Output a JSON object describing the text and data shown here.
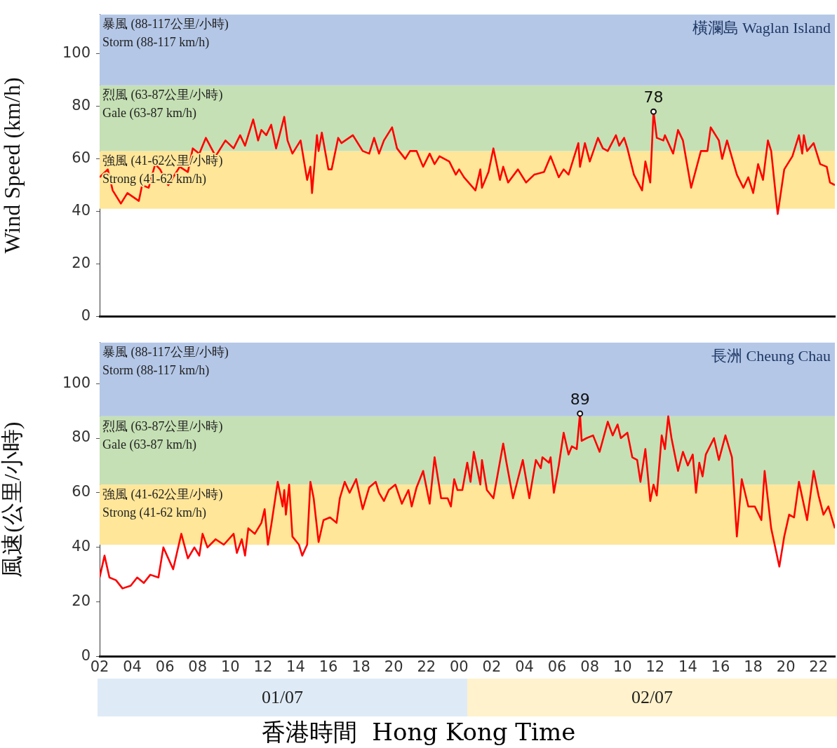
{
  "chart_data": [
    {
      "type": "line",
      "title": "橫瀾島 Waglan Island",
      "ylabel": "Wind Speed (km/h)",
      "xlim": [
        2,
        47
      ],
      "ylim": [
        0,
        115
      ],
      "yticks": [
        0,
        20,
        40,
        60,
        80,
        100
      ],
      "tick_labels": "y",
      "marker": "none",
      "legend": false,
      "bands": [
        {
          "axis": "y",
          "from": 41,
          "to": 63,
          "label": "強風 (41-62公里/小時)\nStrong (41-62 km/h)",
          "color": "#ffe699"
        },
        {
          "axis": "y",
          "from": 63,
          "to": 88,
          "label": "烈風 (63-87公里/小時)\nGale (63-87 km/h)",
          "color": "#c5e0b4"
        },
        {
          "axis": "y",
          "from": 88,
          "to": 115,
          "label": "暴風 (88-117公里/小時)\nStorm (88-117 km/h)",
          "color": "#b4c7e7"
        }
      ],
      "annotations": [
        {
          "text": "78",
          "x": 35.9,
          "y": 78
        }
      ],
      "series": [
        {
          "color": "#ff0000",
          "x": [
            2,
            2.5,
            2.8,
            3.3,
            3.7,
            4.4,
            4.6,
            5,
            5.4,
            5.7,
            6.2,
            6.9,
            7.4,
            7.7,
            8.1,
            8.5,
            9.1,
            9.7,
            10.2,
            10.6,
            10.9,
            11.4,
            11.7,
            11.9,
            12.2,
            12.5,
            12.8,
            13.3,
            13.5,
            13.8,
            14.3,
            14.7,
            14.9,
            15,
            15.3,
            15.4,
            15.6,
            16,
            16.2,
            16.6,
            16.8,
            17.5,
            18.1,
            18.5,
            18.8,
            19.1,
            19.4,
            19.9,
            20.2,
            20.7,
            21,
            21.4,
            21.8,
            22.2,
            22.5,
            22.8,
            23.4,
            23.8,
            24,
            24.3,
            25,
            25.3,
            25.4,
            25.8,
            26.1,
            26.5,
            26.7,
            27,
            27.6,
            28.1,
            28.6,
            29.2,
            29.6,
            30.1,
            30.4,
            30.7,
            31.3,
            31.4,
            31.7,
            32,
            32.5,
            32.8,
            33.1,
            33.6,
            33.8,
            34.1,
            34.3,
            34.7,
            35.2,
            35.4,
            35.7,
            35.9,
            36.1,
            36.5,
            36.6,
            37.1,
            37.4,
            37.7,
            38.2,
            38.8,
            39.2,
            39.4,
            39.9,
            40.1,
            40.4,
            41,
            41.4,
            41.7,
            42,
            42.3,
            42.6,
            42.9,
            43.1,
            43.5,
            43.9,
            44.4,
            44.8,
            45,
            45.1,
            45.3,
            45.7,
            46.1,
            46.5,
            46.7,
            47
          ],
          "values": [
            53,
            56,
            48,
            43,
            47,
            44,
            50,
            49,
            58,
            56,
            50,
            57,
            55,
            64,
            62,
            68,
            61,
            67,
            64,
            69,
            65,
            75,
            67,
            71,
            69,
            73,
            64,
            76,
            67,
            62,
            67,
            52,
            57,
            47,
            69,
            63,
            70,
            56,
            56,
            68,
            66,
            69,
            63,
            62,
            68,
            62,
            67,
            72,
            64,
            60,
            63,
            63,
            57,
            62,
            58,
            61,
            59,
            54,
            56,
            53,
            48,
            56,
            49,
            55,
            64,
            52,
            57,
            51,
            56,
            51,
            54,
            55,
            61,
            53,
            56,
            54,
            66,
            57,
            66,
            59,
            68,
            64,
            63,
            69,
            65,
            68,
            64,
            54,
            48,
            59,
            51,
            78,
            68,
            67,
            69,
            62,
            71,
            67,
            49,
            63,
            63,
            72,
            67,
            60,
            67,
            54,
            49,
            53,
            47,
            58,
            52,
            67,
            63,
            39,
            56,
            61,
            69,
            62,
            69,
            63,
            66,
            58,
            57,
            51,
            50
          ]
        }
      ]
    },
    {
      "type": "line",
      "title": "長洲 Cheung Chau",
      "ylabel": "風速(公里/小時)",
      "xlabel": "香港時間  Hong Kong Time",
      "xlim": [
        2,
        47
      ],
      "ylim": [
        0,
        115
      ],
      "yticks": [
        0,
        20,
        40,
        60,
        80,
        100
      ],
      "xticks": [
        {
          "value": 2,
          "label": "02"
        },
        {
          "value": 4,
          "label": "04"
        },
        {
          "value": 6,
          "label": "06"
        },
        {
          "value": 8,
          "label": "08"
        },
        {
          "value": 10,
          "label": "10"
        },
        {
          "value": 12,
          "label": "12"
        },
        {
          "value": 14,
          "label": "14"
        },
        {
          "value": 16,
          "label": "16"
        },
        {
          "value": 18,
          "label": "18"
        },
        {
          "value": 20,
          "label": "20"
        },
        {
          "value": 22,
          "label": "22"
        },
        {
          "value": 24,
          "label": "00"
        },
        {
          "value": 26,
          "label": "02"
        },
        {
          "value": 28,
          "label": "04"
        },
        {
          "value": 30,
          "label": "06"
        },
        {
          "value": 32,
          "label": "08"
        },
        {
          "value": 34,
          "label": "10"
        },
        {
          "value": 36,
          "label": "12"
        },
        {
          "value": 38,
          "label": "14"
        },
        {
          "value": 40,
          "label": "16"
        },
        {
          "value": 42,
          "label": "18"
        },
        {
          "value": 44,
          "label": "20"
        },
        {
          "value": 46,
          "label": "22"
        }
      ],
      "marker": "none",
      "legend": false,
      "bands": [
        {
          "axis": "y",
          "from": 41,
          "to": 63,
          "label": "強風 (41-62公里/小時)\nStrong (41-62 km/h)",
          "color": "#ffe699"
        },
        {
          "axis": "y",
          "from": 63,
          "to": 88,
          "label": "烈風 (63-87公里/小時)\nGale (63-87 km/h)",
          "color": "#c5e0b4"
        },
        {
          "axis": "y",
          "from": 88,
          "to": 115,
          "label": "暴風 (88-117公里/小時)\nStorm (88-117 km/h)",
          "color": "#b4c7e7"
        }
      ],
      "annotations": [
        {
          "text": "89",
          "x": 31.4,
          "y": 89
        },
        "01/07",
        "02/07"
      ],
      "series": [
        {
          "color": "#ff0000",
          "x": [
            2,
            2.3,
            2.6,
            3,
            3.4,
            3.9,
            4.3,
            4.7,
            5.1,
            5.6,
            5.9,
            6.5,
            7,
            7.4,
            7.8,
            8.1,
            8.3,
            8.6,
            9.1,
            9.6,
            10.2,
            10.4,
            10.7,
            10.9,
            11.1,
            11.5,
            11.9,
            12.1,
            12.3,
            12.5,
            12.9,
            13.2,
            13.3,
            13.4,
            13.6,
            13.8,
            14.2,
            14.4,
            14.7,
            14.9,
            15.1,
            15.4,
            15.7,
            16.1,
            16.5,
            16.7,
            17,
            17.3,
            17.7,
            18.1,
            18.5,
            18.9,
            19.1,
            19.4,
            19.7,
            20.1,
            20.5,
            20.9,
            21.1,
            21.4,
            21.8,
            22.2,
            22.5,
            22.9,
            23.3,
            23.5,
            23.7,
            23.9,
            24.2,
            24.5,
            24.7,
            24.9,
            25.3,
            25.4,
            25.7,
            26.1,
            26.7,
            26.9,
            27.3,
            27.9,
            28.3,
            28.7,
            29,
            29.1,
            29.5,
            29.6,
            29.8,
            30.1,
            30.4,
            30.7,
            30.9,
            31.2,
            31.4,
            31.5,
            31.8,
            32.2,
            32.6,
            33.1,
            33.4,
            33.7,
            33.9,
            34.3,
            34.6,
            34.9,
            35.1,
            35.4,
            35.7,
            35.9,
            36.1,
            36.4,
            36.6,
            36.8,
            37,
            37.4,
            37.7,
            38,
            38.3,
            38.5,
            38.7,
            38.9,
            39.1,
            39.6,
            39.9,
            40.3,
            40.7,
            41,
            41.3,
            41.7,
            42.1,
            42.5,
            42.7,
            43.1,
            43.6,
            43.9,
            44.2,
            44.5,
            44.8,
            45.3,
            45.7,
            46,
            46.3,
            46.6,
            47
          ],
          "values": [
            29,
            37,
            29,
            28,
            25,
            26,
            29,
            27,
            30,
            29,
            40,
            32,
            45,
            36,
            40,
            37,
            45,
            40,
            43,
            41,
            45,
            38,
            43,
            37,
            47,
            45,
            49,
            54,
            41,
            48,
            64,
            55,
            61,
            52,
            63,
            44,
            41,
            37,
            41,
            64,
            58,
            42,
            50,
            51,
            49,
            58,
            64,
            60,
            65,
            54,
            62,
            64,
            60,
            57,
            61,
            63,
            56,
            61,
            55,
            62,
            68,
            56,
            73,
            58,
            58,
            55,
            65,
            61,
            61,
            71,
            64,
            75,
            63,
            72,
            61,
            58,
            78,
            71,
            58,
            72,
            58,
            72,
            69,
            73,
            71,
            73,
            60,
            70,
            82,
            74,
            77,
            76,
            89,
            79,
            80,
            81,
            75,
            86,
            81,
            85,
            80,
            82,
            73,
            72,
            64,
            76,
            57,
            63,
            59,
            81,
            76,
            88,
            80,
            68,
            75,
            70,
            74,
            60,
            71,
            66,
            74,
            80,
            72,
            81,
            73,
            44,
            65,
            55,
            55,
            50,
            68,
            47,
            33,
            44,
            52,
            51,
            64,
            50,
            68,
            59,
            52,
            55,
            47
          ]
        }
      ]
    }
  ]
}
